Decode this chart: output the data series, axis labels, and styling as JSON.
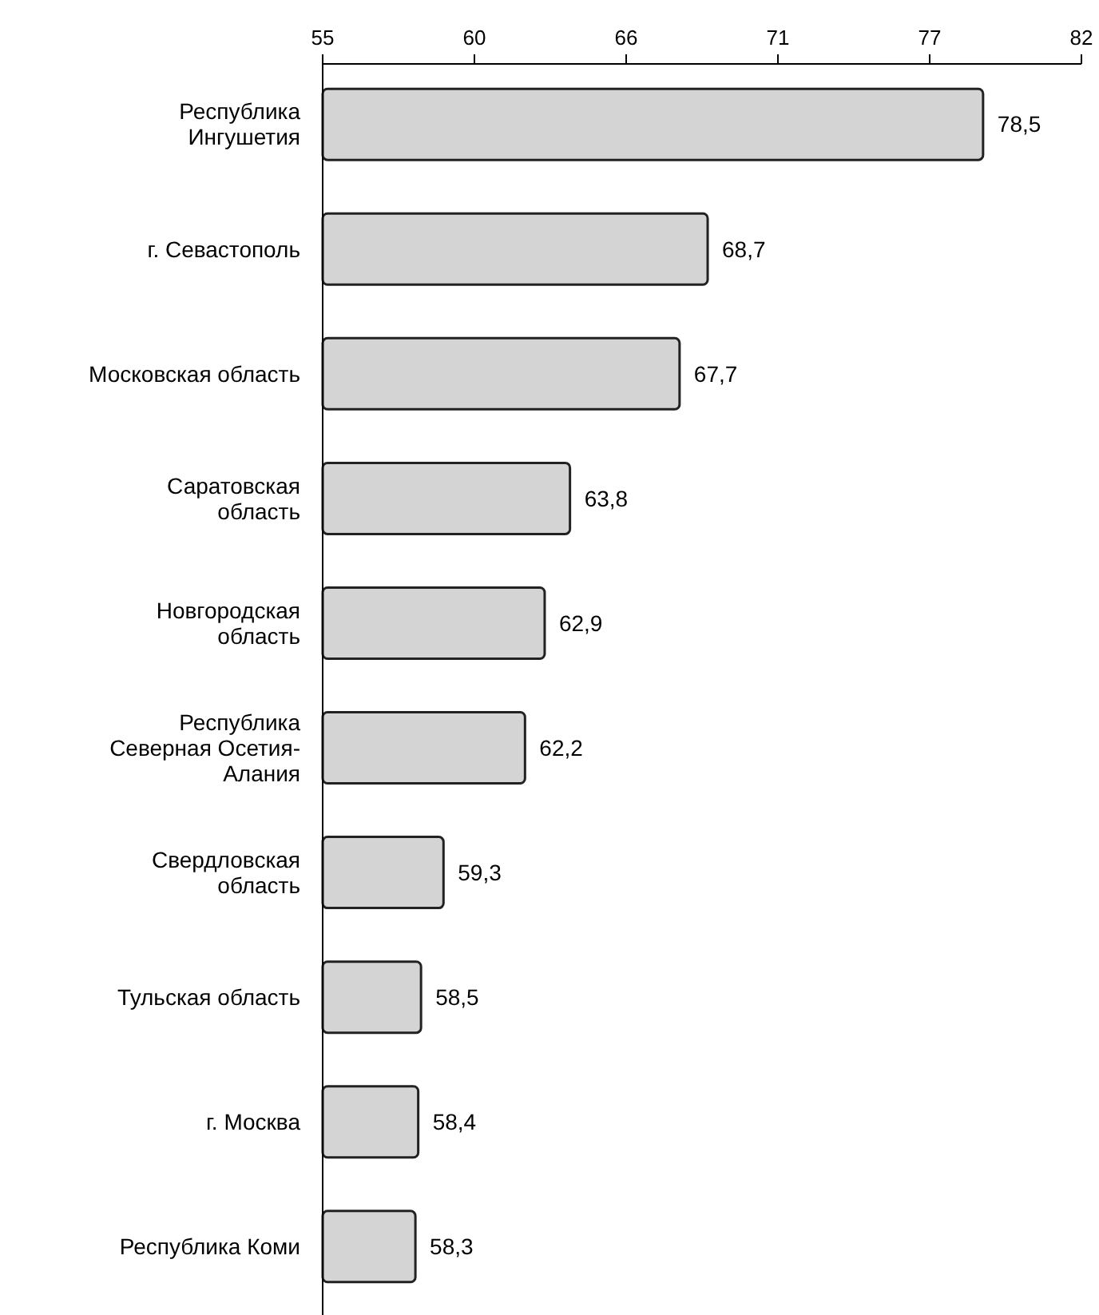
{
  "chart_data": {
    "type": "bar",
    "orientation": "horizontal",
    "categories": [
      "Республика\nИнгушетия",
      "г. Севастополь",
      "Московская область",
      "Саратовская\nобласть",
      "Новгородская\nобласть",
      "Республика\nСеверная Осетия-\nАлания",
      "Свердловская\nобласть",
      "Тульская область",
      "г. Москва",
      "Республика Коми"
    ],
    "values": [
      78.5,
      68.7,
      67.7,
      63.8,
      62.9,
      62.2,
      59.3,
      58.5,
      58.4,
      58.3
    ],
    "value_labels": [
      "78,5",
      "68,7",
      "67,7",
      "63,8",
      "62,9",
      "62,2",
      "59,3",
      "58,5",
      "58,4",
      "58,3"
    ],
    "color": "#d4d4d4",
    "xlim": [
      55,
      82
    ],
    "xticks": [
      55,
      {
        "value": 60.4,
        "label": "60"
      },
      {
        "value": 65.8,
        "label": "66"
      },
      {
        "value": 71.2,
        "label": "71"
      },
      {
        "value": 76.6,
        "label": "77"
      },
      82
    ],
    "grid": false
  }
}
